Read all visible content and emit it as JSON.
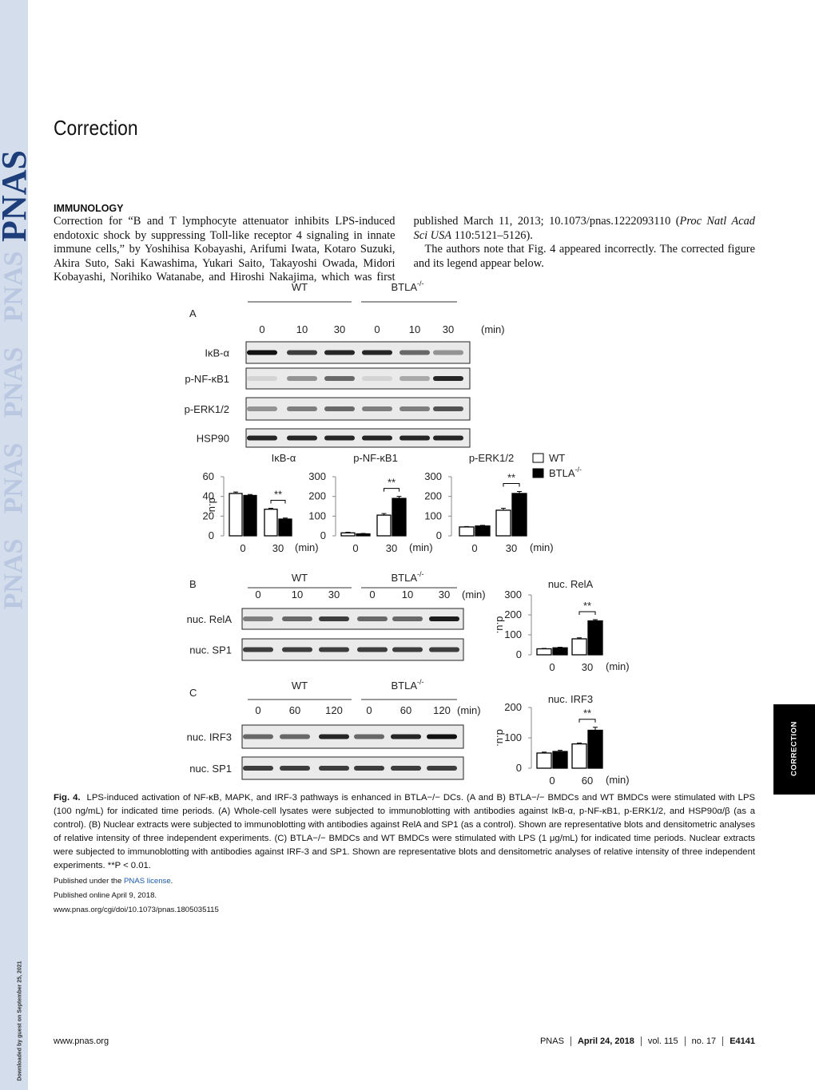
{
  "header": {
    "logo": "PNAS",
    "title": "Correction",
    "section": "IMMUNOLOGY"
  },
  "body": {
    "paragraph1": {
      "part1": "Correction for “B and T lymphocyte attenuator inhibits LPS-induced endotoxic shock by suppressing Toll-like receptor 4 signaling in innate immune cells,” by Yoshihisa Kobayashi, Arifumi Iwata, Kotaro Suzuki, Akira Suto, Saki Kawashima, Yukari Saito, Takayoshi Owada, Midori Kobayashi, Norihiko Watanabe, and Hiroshi Nakajima, which was first published March 11, 2013; 10.1073/pnas.1222093110 (",
      "journal": "Proc Natl Acad Sci USA",
      "part2": " 110:5121–5126)."
    },
    "paragraph2": "The authors note that Fig. 4 appeared incorrectly. The corrected figure and its legend appear below."
  },
  "figure": {
    "panels": [
      {
        "label": "A",
        "groups": [
          {
            "name": "WT"
          },
          {
            "name": "BTLA",
            "sup": "-/-"
          }
        ],
        "lanes": [
          "0",
          "10",
          "30",
          "0",
          "10",
          "30"
        ],
        "lane_unit": "(min)",
        "blots": [
          "IκB-α",
          "p-NF-κB1",
          "p-ERK1/2",
          "HSP90"
        ]
      },
      {
        "label": "B",
        "groups": [
          {
            "name": "WT"
          },
          {
            "name": "BTLA",
            "sup": "-/-"
          }
        ],
        "lanes": [
          "0",
          "10",
          "30",
          "0",
          "10",
          "30"
        ],
        "lane_unit": "(min)",
        "blots": [
          "nuc. RelA",
          "nuc. SP1"
        ]
      },
      {
        "label": "C",
        "groups": [
          {
            "name": "WT"
          },
          {
            "name": "BTLA",
            "sup": "-/-"
          }
        ],
        "lanes": [
          "0",
          "60",
          "120",
          "0",
          "60",
          "120"
        ],
        "lane_unit": "(min)",
        "blots": [
          "nuc. IRF3",
          "nuc. SP1"
        ]
      }
    ],
    "legend": [
      {
        "name": "WT",
        "color": "#ffffff"
      },
      {
        "name": "BTLA",
        "sup": "-/-",
        "color": "#000000"
      }
    ],
    "charts": [
      {
        "type": "bar",
        "title": "IκB-α",
        "ylabel": "d.u.",
        "categories": [
          "0",
          "30"
        ],
        "xlabel": "(min)",
        "ylim": [
          0,
          60
        ],
        "yticks": [
          0,
          20,
          40,
          60
        ],
        "annotation": "**",
        "series": [
          {
            "color": "#ffffff",
            "values": [
              43,
              27
            ],
            "errors": [
              1.5,
              1
            ]
          },
          {
            "color": "#000000",
            "values": [
              41,
              17
            ],
            "errors": [
              1,
              1
            ]
          }
        ]
      },
      {
        "type": "bar",
        "title": "p-NF-κB1",
        "categories": [
          "0",
          "30"
        ],
        "xlabel": "(min)",
        "ylim": [
          0,
          300
        ],
        "yticks": [
          0,
          100,
          200,
          300
        ],
        "annotation": "**",
        "series": [
          {
            "color": "#ffffff",
            "values": [
              15,
              105
            ],
            "errors": [
              3,
              8
            ]
          },
          {
            "color": "#000000",
            "values": [
              10,
              190
            ],
            "errors": [
              2,
              10
            ]
          }
        ]
      },
      {
        "type": "bar",
        "title": "p-ERK1/2",
        "categories": [
          "0",
          "30"
        ],
        "xlabel": "(min)",
        "ylim": [
          0,
          300
        ],
        "yticks": [
          0,
          100,
          200,
          300
        ],
        "annotation": "**",
        "series": [
          {
            "color": "#ffffff",
            "values": [
              45,
              130
            ],
            "errors": [
              2,
              10
            ]
          },
          {
            "color": "#000000",
            "values": [
              50,
              215
            ],
            "errors": [
              3,
              10
            ]
          }
        ]
      },
      {
        "type": "bar",
        "title": "nuc. RelA",
        "ylabel": "d.u.",
        "categories": [
          "0",
          "30"
        ],
        "xlabel": "(min)",
        "ylim": [
          0,
          300
        ],
        "yticks": [
          0,
          100,
          200,
          300
        ],
        "annotation": "**",
        "series": [
          {
            "color": "#ffffff",
            "values": [
              30,
              80
            ],
            "errors": [
              2,
              5
            ]
          },
          {
            "color": "#000000",
            "values": [
              35,
              170
            ],
            "errors": [
              3,
              6
            ]
          }
        ]
      },
      {
        "type": "bar",
        "title": "nuc. IRF3",
        "ylabel": "d.u.",
        "categories": [
          "0",
          "60"
        ],
        "xlabel": "(min)",
        "ylim": [
          0,
          200
        ],
        "yticks": [
          0,
          100,
          200
        ],
        "annotation": "**",
        "series": [
          {
            "color": "#ffffff",
            "values": [
              50,
              80
            ],
            "errors": [
              3,
              3
            ]
          },
          {
            "color": "#000000",
            "values": [
              55,
              125
            ],
            "errors": [
              4,
              10
            ]
          }
        ]
      }
    ],
    "caption": {
      "label": "Fig. 4.",
      "text": "LPS-induced activation of NF-κB, MAPK, and IRF-3 pathways is enhanced in BTLA−/− DCs. (A and B) BTLA−/− BMDCs and WT BMDCs were stimulated with LPS (100 ng/mL) for indicated time periods. (A) Whole-cell lysates were subjected to immunoblotting with antibodies against IκB-α, p-NF-κB1, p-ERK1/2, and HSP90α/β (as a control). (B) Nuclear extracts were subjected to immunoblotting with antibodies against RelA and SP1 (as a control). Shown are representative blots and densitometric analyses of relative intensity of three independent experiments. (C) BTLA−/− BMDCs and WT BMDCs were stimulated with LPS (1 μg/mL) for indicated time periods. Nuclear extracts were subjected to immunoblotting with antibodies against IRF-3 and SP1. Shown are representative blots and densitometric analyses of relative intensity of three independent experiments. **P < 0.01."
    }
  },
  "published": {
    "license_prefix": "Published under the ",
    "license_link": "PNAS license",
    "license_suffix": ".",
    "online": "Published online April 9, 2018.",
    "doi": "www.pnas.org/cgi/doi/10.1073/pnas.1805035115"
  },
  "sidebar": {
    "tab": "CORRECTION",
    "download_note": "Downloaded by guest on September 25, 2021"
  },
  "footer": {
    "url": "www.pnas.org",
    "journal": "PNAS",
    "date": "April 24, 2018",
    "volume": "vol. 115",
    "issue": "no. 17",
    "page": "E4141"
  }
}
